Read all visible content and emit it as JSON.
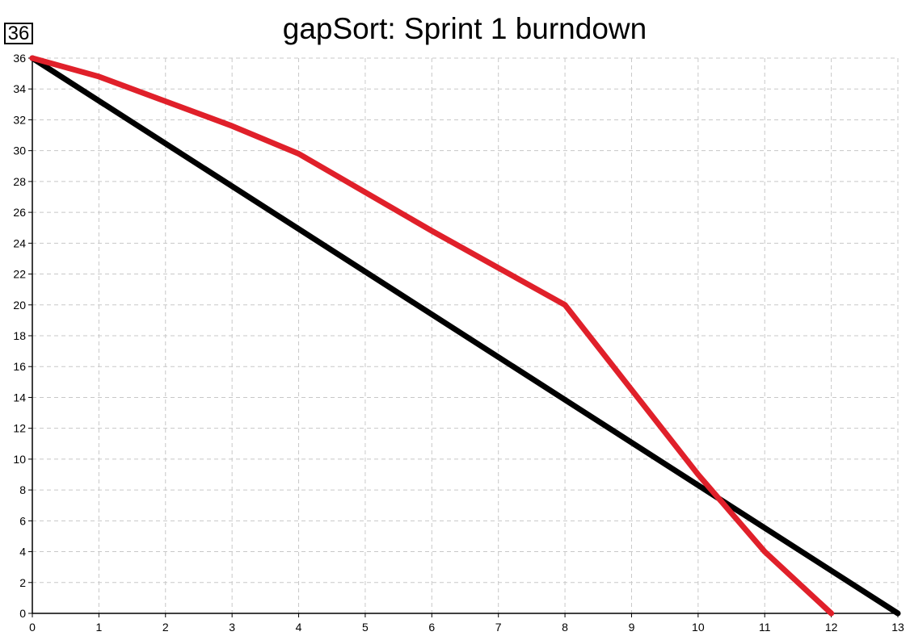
{
  "badge": "36",
  "chart_data": {
    "type": "line",
    "title": "gapSort: Sprint 1 burndown",
    "xlabel": "",
    "ylabel": "",
    "xlim": [
      0,
      13
    ],
    "ylim": [
      0,
      36
    ],
    "x_ticks": [
      0,
      1,
      2,
      3,
      4,
      5,
      6,
      7,
      8,
      9,
      10,
      11,
      12,
      13
    ],
    "y_ticks": [
      0,
      2,
      4,
      6,
      8,
      10,
      12,
      14,
      16,
      18,
      20,
      22,
      24,
      26,
      28,
      30,
      32,
      34,
      36
    ],
    "grid": true,
    "series": [
      {
        "color": "#000000",
        "points": [
          [
            0,
            36
          ],
          [
            13,
            0
          ]
        ]
      },
      {
        "color": "#e0202a",
        "points": [
          [
            0,
            36
          ],
          [
            1,
            34.8
          ],
          [
            2,
            33.2
          ],
          [
            3,
            31.6
          ],
          [
            4,
            29.8
          ],
          [
            5,
            27.3
          ],
          [
            6,
            24.8
          ],
          [
            7,
            22.4
          ],
          [
            8,
            20
          ],
          [
            9,
            14.5
          ],
          [
            10,
            9
          ],
          [
            11,
            4
          ],
          [
            12,
            0
          ]
        ]
      }
    ]
  }
}
